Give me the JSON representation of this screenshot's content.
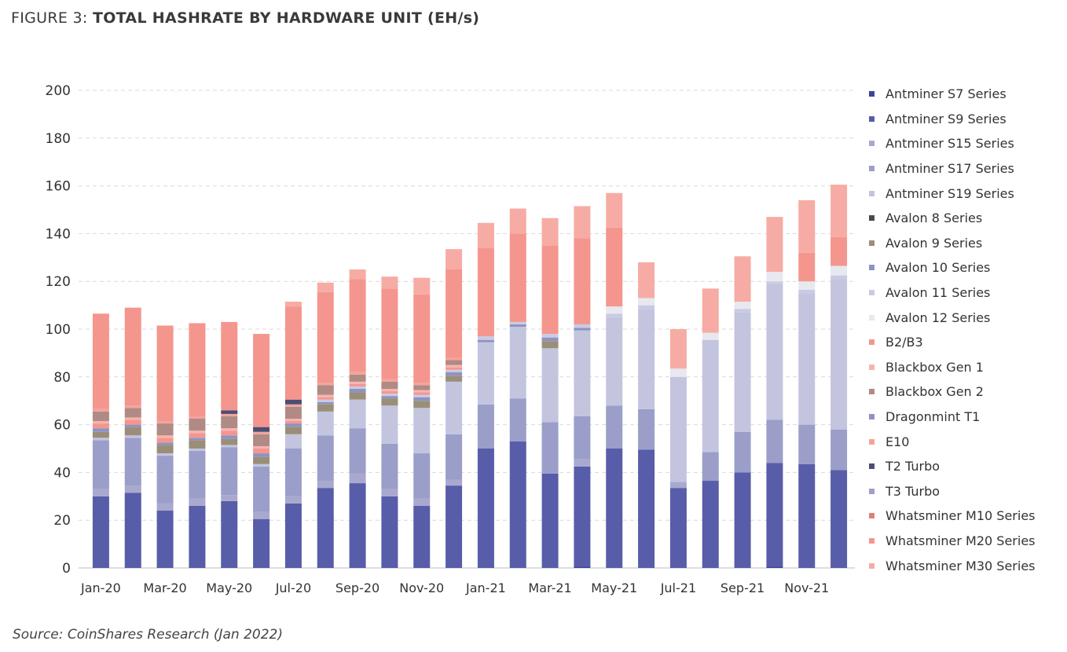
{
  "figure": {
    "title_lead": "FIGURE 3: ",
    "title_main": "TOTAL HASHRATE BY HARDWARE UNIT (EH/s)",
    "source": "Source: CoinShares Research (Jan 2022)"
  },
  "chart_data": {
    "type": "bar",
    "stacked": true,
    "title": "FIGURE 3: TOTAL HASHRATE BY HARDWARE UNIT (EH/s)",
    "xlabel": "",
    "ylabel": "",
    "ylim": [
      0,
      200
    ],
    "yticks": [
      0,
      20,
      40,
      60,
      80,
      100,
      120,
      140,
      160,
      180,
      200
    ],
    "grid": true,
    "legend_position": "right",
    "categories": [
      "Jan-20",
      "Feb-20",
      "Mar-20",
      "Apr-20",
      "May-20",
      "Jun-20",
      "Jul-20",
      "Aug-20",
      "Sep-20",
      "Oct-20",
      "Nov-20",
      "Dec-20",
      "Jan-21",
      "Feb-21",
      "Mar-21",
      "Apr-21",
      "May-21",
      "Jun-21",
      "Jul-21",
      "Aug-21",
      "Sep-21",
      "Oct-21",
      "Nov-21",
      "Dec-21"
    ],
    "xtick_labels": [
      "Jan-20",
      "Mar-20",
      "May-20",
      "Jul-20",
      "Sep-20",
      "Nov-20",
      "Jan-21",
      "Mar-21",
      "May-21",
      "Jul-21",
      "Sep-21",
      "Nov-21"
    ],
    "series": [
      {
        "name": "Antminer S7 Series",
        "color": "#3f4494",
        "values": [
          0,
          0,
          0,
          0,
          0,
          0,
          0,
          0,
          0,
          0,
          0,
          0,
          0,
          0,
          0,
          0.5,
          0,
          0,
          0,
          0,
          0,
          0.5,
          0,
          0
        ]
      },
      {
        "name": "Antminer S9 Series",
        "color": "#575da8",
        "values": [
          30,
          31.5,
          24,
          26,
          28,
          20.5,
          27,
          33.5,
          35.5,
          30,
          26,
          34.5,
          50,
          53,
          39.5,
          42,
          50,
          49.5,
          33.5,
          36.5,
          40,
          43.5,
          43.5,
          41
        ]
      },
      {
        "name": "Antminer S15 Series",
        "color": "#a9a9cf",
        "values": [
          3,
          3,
          3,
          3,
          2.5,
          3,
          3,
          3,
          4,
          3,
          3,
          2.5,
          0,
          0,
          0,
          3,
          0,
          0,
          2.5,
          0,
          0,
          0,
          0,
          0
        ]
      },
      {
        "name": "Antminer S17 Series",
        "color": "#9a9ec9",
        "values": [
          20.5,
          20,
          20,
          20,
          20,
          19,
          20,
          19,
          19,
          19,
          19,
          19,
          18.5,
          18,
          21.5,
          18,
          18,
          17,
          0,
          12,
          17,
          18,
          16.5,
          17
        ]
      },
      {
        "name": "Antminer S19 Series",
        "color": "#c3c5df",
        "values": [
          1,
          1,
          1,
          1,
          1,
          1,
          6,
          10,
          12,
          16,
          19,
          22,
          26,
          30,
          31,
          36,
          37,
          42,
          44,
          47,
          50,
          57,
          55,
          63
        ]
      },
      {
        "name": "Avalon 8 Series",
        "color": "#4a4a4a",
        "values": [
          0,
          0,
          0,
          0,
          0,
          0,
          0,
          0,
          0,
          0,
          0,
          0,
          0,
          0,
          0,
          0,
          0,
          0,
          0,
          0,
          0,
          0,
          0,
          0
        ]
      },
      {
        "name": "Avalon 9 Series",
        "color": "#9b8e78",
        "values": [
          2.5,
          3.5,
          3.5,
          3.5,
          2.5,
          3,
          3,
          3,
          3,
          3,
          3,
          2.5,
          0,
          0,
          3,
          0,
          0,
          0,
          0,
          0,
          0,
          0,
          0,
          0
        ]
      },
      {
        "name": "Avalon 10 Series",
        "color": "#8e93c2",
        "values": [
          1.5,
          1,
          1,
          1,
          1.5,
          1.5,
          1.5,
          1,
          1.5,
          1,
          1.5,
          1.5,
          1,
          1,
          1.5,
          1,
          0,
          0,
          0,
          0,
          0,
          0,
          0,
          0
        ]
      },
      {
        "name": "Avalon 11 Series",
        "color": "#c9cbe3",
        "values": [
          0,
          0,
          0,
          0,
          0,
          0,
          0,
          1,
          1,
          1,
          1,
          1,
          1.5,
          1,
          1.5,
          1.5,
          1.5,
          1.5,
          0,
          0,
          1.5,
          1,
          1.5,
          1.5
        ]
      },
      {
        "name": "Avalon 12 Series",
        "color": "#e8e8ef",
        "values": [
          0,
          0,
          0,
          0,
          0,
          0,
          0,
          0,
          0,
          0,
          0,
          0,
          0,
          0,
          0,
          0,
          3,
          3,
          3.5,
          3,
          3,
          4,
          3.5,
          4
        ]
      },
      {
        "name": "B2/B3",
        "color": "#f4968e",
        "values": [
          2,
          2,
          2,
          2,
          2,
          2,
          1,
          1,
          1,
          1,
          1,
          1,
          0,
          0,
          0,
          0,
          0,
          0,
          0,
          0,
          0,
          0,
          0,
          0
        ]
      },
      {
        "name": "Blackbox Gen 1",
        "color": "#f7b4ad",
        "values": [
          1,
          1,
          1,
          1,
          1,
          1,
          1,
          1,
          1,
          1,
          1,
          1,
          0,
          0,
          0,
          0,
          0,
          0,
          0,
          0,
          0,
          0,
          0,
          0
        ]
      },
      {
        "name": "Blackbox Gen 2",
        "color": "#b08a85",
        "values": [
          4,
          4,
          5,
          5,
          5,
          5,
          5,
          4,
          3,
          3,
          2,
          2,
          0,
          0,
          0,
          0,
          0,
          0,
          0,
          0,
          0,
          0,
          0,
          0
        ]
      },
      {
        "name": "Dragonmint T1",
        "color": "#8f93bf",
        "values": [
          0,
          0,
          0,
          0,
          0,
          0,
          0,
          0,
          0,
          0,
          0,
          0,
          0,
          0,
          0,
          0,
          0,
          0,
          0,
          0,
          0,
          0,
          0,
          0
        ]
      },
      {
        "name": "E10",
        "color": "#f4a39b",
        "values": [
          1,
          1,
          1,
          1,
          1,
          1,
          1,
          1,
          1,
          1,
          1,
          1,
          0,
          0,
          0,
          0,
          0,
          0,
          0,
          0,
          0,
          0,
          0,
          0
        ]
      },
      {
        "name": "T2 Turbo",
        "color": "#4b4e73",
        "values": [
          0,
          0,
          0,
          0,
          1.5,
          2,
          2,
          0,
          0,
          0,
          0,
          0,
          0,
          0,
          0,
          0,
          0,
          0,
          0,
          0,
          0,
          0,
          0,
          0
        ]
      },
      {
        "name": "T3 Turbo",
        "color": "#9ea0c4",
        "values": [
          0,
          0,
          0,
          0,
          0,
          0,
          0,
          0,
          0,
          0,
          0,
          0,
          0,
          0,
          0,
          0,
          0,
          0,
          0,
          0,
          0,
          0,
          0,
          0
        ]
      },
      {
        "name": "Whatsminer M10 Series",
        "color": "#d98476",
        "values": [
          0,
          0,
          0,
          0,
          0,
          0,
          0,
          0,
          0,
          0,
          0,
          0,
          0,
          0,
          0,
          0,
          0,
          0,
          0,
          0,
          0,
          0,
          0,
          0
        ]
      },
      {
        "name": "Whatsminer M20 Series",
        "color": "#f4968e",
        "values": [
          40,
          41,
          40,
          39,
          37,
          39,
          39,
          38,
          39,
          38,
          37,
          37,
          37,
          37,
          37,
          36,
          33,
          0,
          0,
          0,
          0,
          0,
          12,
          12
        ]
      },
      {
        "name": "Whatsminer M30 Series",
        "color": "#f6aca4",
        "values": [
          0,
          0,
          0,
          0,
          0,
          0,
          2,
          4,
          4,
          5,
          7,
          8.5,
          10.5,
          10.5,
          11.5,
          13.5,
          14.5,
          15,
          16.5,
          18.5,
          19,
          23,
          22,
          22
        ]
      }
    ]
  }
}
